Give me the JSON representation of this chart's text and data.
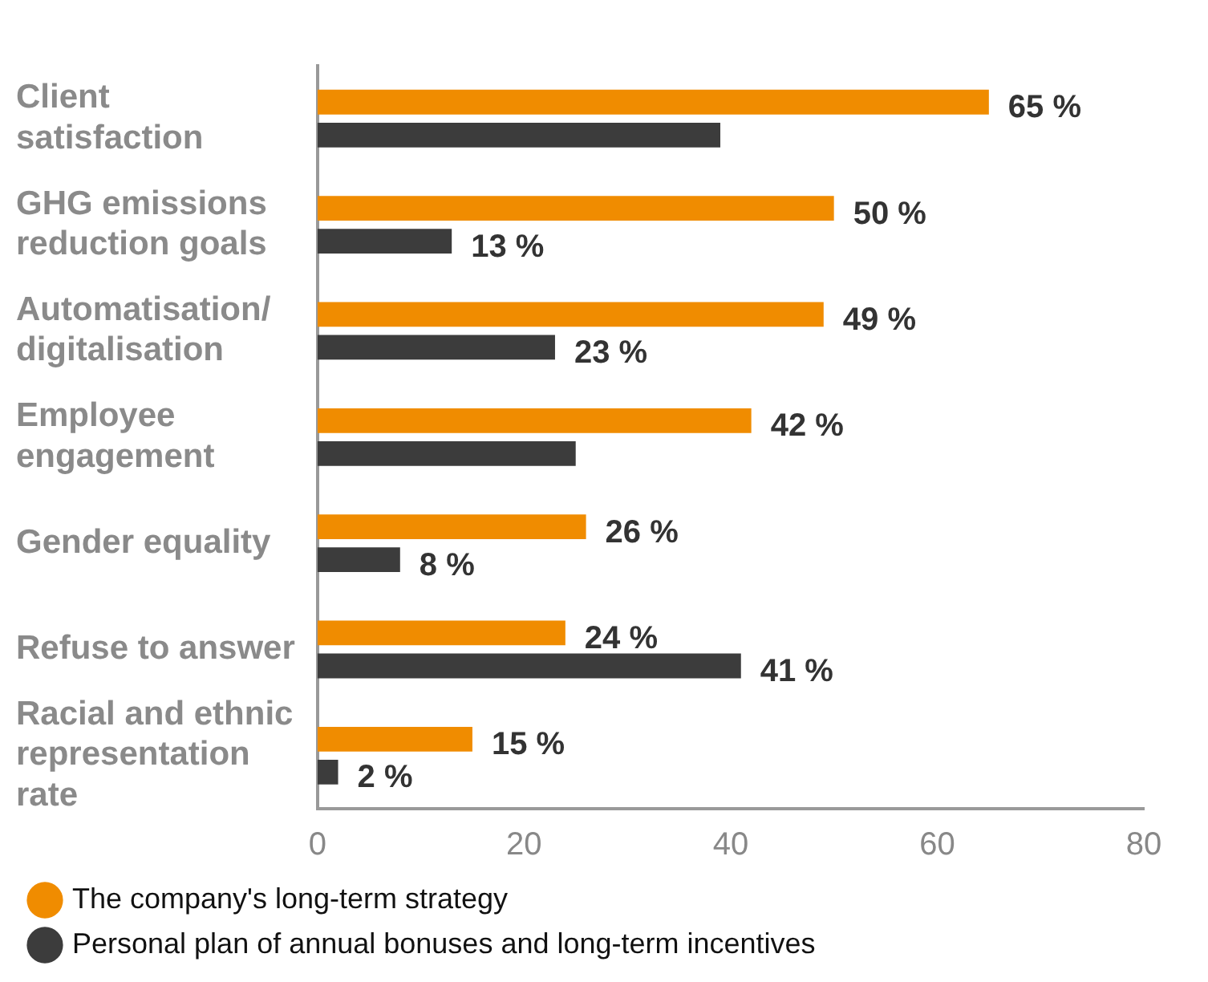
{
  "chart_data": {
    "type": "bar",
    "orientation": "horizontal",
    "categories": [
      "Client satisfaction",
      "GHG emissions reduction goals",
      "Automatisation/ digitalisation",
      "Employee engagement",
      "Gender equality",
      "Refuse to answer",
      "Racial and ethnic representation rate"
    ],
    "series": [
      {
        "name": "The company's long-term strategy",
        "color": "#f08c00",
        "values": [
          65,
          50,
          49,
          42,
          26,
          24,
          15
        ],
        "value_labels": [
          "65 %",
          "50 %",
          "49 %",
          "42 %",
          "26 %",
          "24 %",
          "15 %"
        ]
      },
      {
        "name": "Personal plan of annual bonuses and long-term incentives",
        "color": "#3c3c3c",
        "values": [
          39,
          13,
          23,
          25,
          8,
          41,
          2
        ],
        "value_labels": [
          null,
          "13 %",
          "23 %",
          null,
          "8 %",
          "41 %",
          "2 %"
        ]
      }
    ],
    "xlim": [
      0,
      80
    ],
    "xticks": [
      0,
      20,
      40,
      60,
      80
    ],
    "grid": false,
    "legend": "bottom left",
    "marker": "circle"
  }
}
